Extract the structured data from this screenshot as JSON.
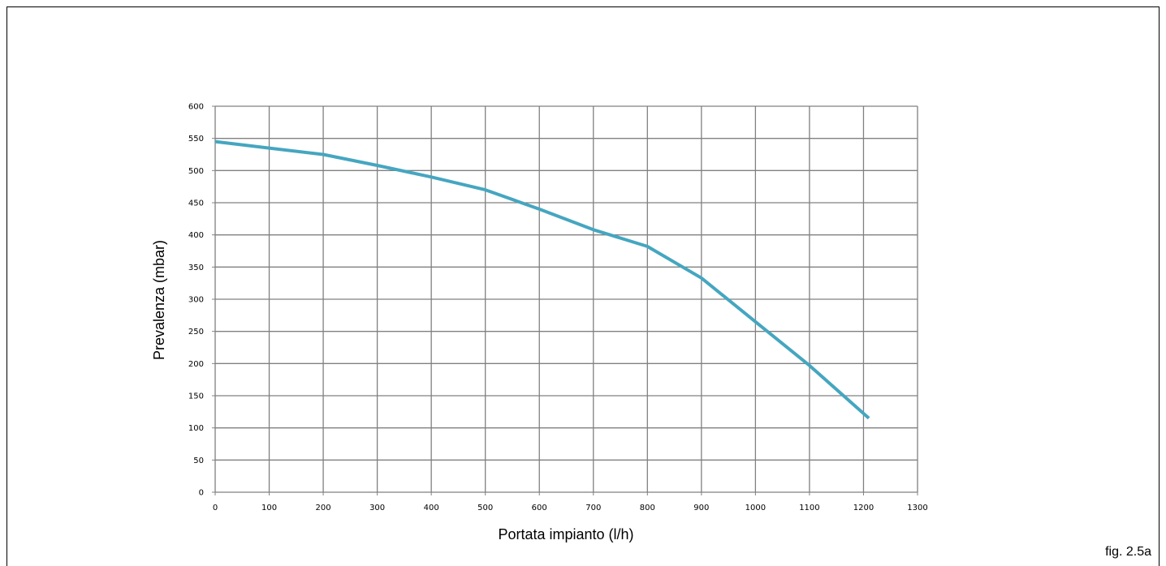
{
  "chart_data": {
    "type": "line",
    "xlabel": "Portata impianto (l/h)",
    "ylabel": "Prevalenza (mbar)",
    "xlim": [
      0,
      1300
    ],
    "ylim": [
      0,
      600
    ],
    "x_ticks": [
      0,
      100,
      200,
      300,
      400,
      500,
      600,
      700,
      800,
      900,
      1000,
      1100,
      1200,
      1300
    ],
    "y_ticks": [
      0,
      50,
      100,
      150,
      200,
      250,
      300,
      350,
      400,
      450,
      500,
      550,
      600
    ],
    "grid": true,
    "series": [
      {
        "color": "#45a6c0",
        "x": [
          0,
          100,
          200,
          300,
          400,
          500,
          600,
          700,
          800,
          900,
          1000,
          1100,
          1210
        ],
        "y": [
          545,
          535,
          525,
          508,
          490,
          470,
          440,
          408,
          382,
          333,
          265,
          197,
          115
        ]
      }
    ]
  },
  "figure": {
    "label": "fig. 2.5a"
  }
}
